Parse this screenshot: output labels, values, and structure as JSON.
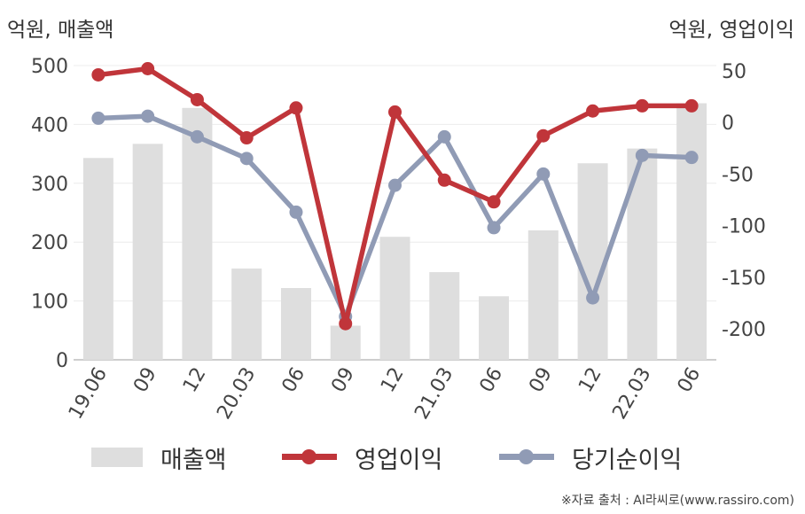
{
  "units": {
    "left": "억원, 매출액",
    "right": "억원, 영업이익"
  },
  "source": "※자료 출처 : AI라씨로(www.rassiro.com)",
  "colors": {
    "revenue": "#dedede",
    "operating": "#c0353a",
    "net": "#909bb5"
  },
  "chart_data": {
    "type": "bar+line",
    "categories": [
      "19.06",
      "09",
      "12",
      "20.03",
      "06",
      "09",
      "12",
      "21.03",
      "06",
      "09",
      "12",
      "22.03",
      "06"
    ],
    "y_left": {
      "min": 0,
      "max": 500,
      "ticks": [
        0,
        100,
        200,
        300,
        400,
        500
      ]
    },
    "y_right": {
      "min": -230,
      "max": 55,
      "ticks": [
        50,
        0,
        -50,
        -100,
        -150,
        -200
      ]
    },
    "series": [
      {
        "name": "매출액",
        "type": "bar",
        "axis": "left",
        "values": [
          343,
          367,
          428,
          155,
          122,
          58,
          209,
          149,
          108,
          220,
          334,
          359,
          436
        ]
      },
      {
        "name": "영업이익",
        "type": "line",
        "axis": "right",
        "values": [
          46,
          52,
          22,
          -15,
          14,
          -195,
          10,
          -56,
          -77,
          -13,
          11,
          16,
          16
        ]
      },
      {
        "name": "당기순이익",
        "type": "line",
        "axis": "right",
        "values": [
          4,
          6,
          -14,
          -35,
          -87,
          -188,
          -61,
          -14,
          -102,
          -50,
          -170,
          -32,
          -34
        ]
      }
    ]
  }
}
